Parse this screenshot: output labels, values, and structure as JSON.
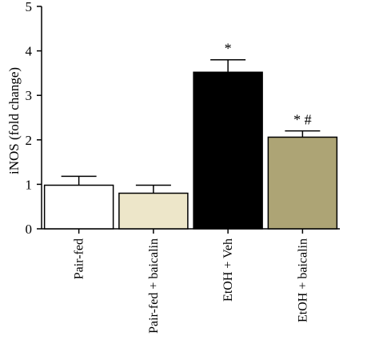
{
  "chart_data": {
    "type": "bar",
    "title": "",
    "xlabel": "",
    "ylabel": "iNOS (fold change)",
    "ylim": [
      0,
      5
    ],
    "yticks": [
      0,
      1,
      2,
      3,
      4,
      5
    ],
    "grid": false,
    "categories": [
      "Pair-fed",
      "Pair-fed + baicalin",
      "EtOH + Veh",
      "EtOH + baicalin"
    ],
    "values": [
      0.98,
      0.8,
      3.52,
      2.06
    ],
    "errors": [
      0.2,
      0.18,
      0.28,
      0.14
    ],
    "colors": [
      "#ffffff",
      "#ede6c9",
      "#000000",
      "#ada475"
    ],
    "annotations": [
      "",
      "",
      "*",
      "* #"
    ]
  }
}
